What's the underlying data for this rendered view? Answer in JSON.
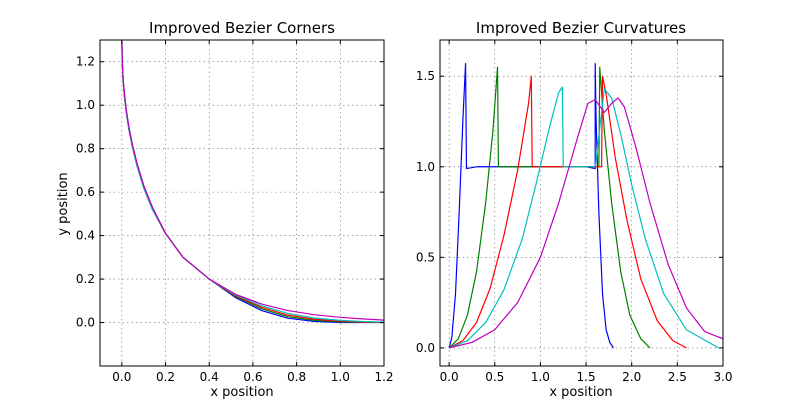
{
  "chart_data": [
    {
      "type": "line",
      "title": "Improved Bezier Corners",
      "xlabel": "x position",
      "ylabel": "y position",
      "xlim": [
        -0.1,
        1.2
      ],
      "ylim": [
        -0.2,
        1.3
      ],
      "xticks": [
        "0.0",
        "0.2",
        "0.4",
        "0.6",
        "0.8",
        "1.0",
        "1.2"
      ],
      "yticks": [
        "0.0",
        "0.2",
        "0.4",
        "0.6",
        "0.8",
        "1.0",
        "1.2"
      ],
      "grid": true,
      "series": [
        {
          "color": "#0000ff",
          "x": [
            0.0,
            0.002,
            0.006,
            0.012,
            0.02,
            0.032,
            0.048,
            0.07,
            0.1,
            0.14,
            0.2,
            0.28,
            0.4,
            0.52,
            0.64,
            0.76,
            0.88,
            1.0,
            1.1,
            1.2
          ],
          "y": [
            1.3,
            1.2,
            1.12,
            1.05,
            0.98,
            0.9,
            0.82,
            0.73,
            0.63,
            0.53,
            0.41,
            0.3,
            0.2,
            0.115,
            0.055,
            0.02,
            0.005,
            0.0,
            0.0,
            0.0
          ]
        },
        {
          "color": "#008000",
          "x": [
            0.0,
            0.002,
            0.006,
            0.012,
            0.02,
            0.032,
            0.048,
            0.07,
            0.1,
            0.14,
            0.2,
            0.28,
            0.4,
            0.52,
            0.64,
            0.76,
            0.88,
            1.0,
            1.1,
            1.2
          ],
          "y": [
            1.3,
            1.19,
            1.11,
            1.04,
            0.97,
            0.89,
            0.81,
            0.72,
            0.62,
            0.52,
            0.41,
            0.3,
            0.2,
            0.12,
            0.063,
            0.027,
            0.01,
            0.003,
            0.001,
            0.0
          ]
        },
        {
          "color": "#ff0000",
          "x": [
            0.0,
            0.002,
            0.006,
            0.012,
            0.02,
            0.032,
            0.048,
            0.07,
            0.1,
            0.14,
            0.2,
            0.28,
            0.4,
            0.52,
            0.64,
            0.76,
            0.88,
            1.0,
            1.1,
            1.2
          ],
          "y": [
            1.3,
            1.19,
            1.11,
            1.04,
            0.97,
            0.89,
            0.81,
            0.72,
            0.62,
            0.52,
            0.41,
            0.3,
            0.2,
            0.123,
            0.07,
            0.034,
            0.015,
            0.006,
            0.003,
            0.001
          ]
        },
        {
          "color": "#00bfbf",
          "x": [
            0.0,
            0.002,
            0.006,
            0.012,
            0.02,
            0.032,
            0.048,
            0.07,
            0.1,
            0.14,
            0.2,
            0.28,
            0.4,
            0.52,
            0.64,
            0.76,
            0.88,
            1.0,
            1.1,
            1.2
          ],
          "y": [
            1.3,
            1.19,
            1.11,
            1.04,
            0.97,
            0.89,
            0.81,
            0.72,
            0.62,
            0.52,
            0.41,
            0.3,
            0.2,
            0.127,
            0.077,
            0.042,
            0.021,
            0.01,
            0.005,
            0.002
          ]
        },
        {
          "color": "#bf00bf",
          "x": [
            0.0,
            0.002,
            0.006,
            0.012,
            0.02,
            0.032,
            0.048,
            0.07,
            0.1,
            0.14,
            0.2,
            0.28,
            0.4,
            0.52,
            0.64,
            0.76,
            0.88,
            1.0,
            1.1,
            1.2
          ],
          "y": [
            1.3,
            1.2,
            1.12,
            1.05,
            0.98,
            0.9,
            0.82,
            0.73,
            0.63,
            0.53,
            0.41,
            0.3,
            0.2,
            0.13,
            0.085,
            0.055,
            0.036,
            0.024,
            0.017,
            0.011
          ]
        }
      ]
    },
    {
      "type": "line",
      "title": "Improved Bezier Curvatures",
      "xlabel": "x position",
      "ylabel": "",
      "xlim": [
        -0.1,
        3.0
      ],
      "ylim": [
        -0.1,
        1.7
      ],
      "xticks": [
        "0.0",
        "0.5",
        "1.0",
        "1.5",
        "2.0",
        "2.5",
        "3.0"
      ],
      "yticks": [
        "0.0",
        "0.5",
        "1.0",
        "1.5"
      ],
      "grid": true,
      "series": [
        {
          "color": "#0000ff",
          "x": [
            0.0,
            0.03,
            0.07,
            0.11,
            0.15,
            0.18,
            0.19,
            0.3,
            0.6,
            0.9,
            1.2,
            1.5,
            1.6,
            1.6,
            1.61,
            1.64,
            1.68,
            1.72,
            1.76,
            1.8
          ],
          "y": [
            0.0,
            0.06,
            0.3,
            0.75,
            1.25,
            1.57,
            0.99,
            1.0,
            1.0,
            1.0,
            1.0,
            1.0,
            0.99,
            1.57,
            1.25,
            0.75,
            0.3,
            0.1,
            0.03,
            0.0
          ]
        },
        {
          "color": "#008000",
          "x": [
            0.0,
            0.1,
            0.2,
            0.3,
            0.4,
            0.48,
            0.53,
            0.54,
            0.7,
            1.0,
            1.3,
            1.6,
            1.64,
            1.65,
            1.7,
            1.78,
            1.88,
            1.98,
            2.1,
            2.2
          ],
          "y": [
            0.0,
            0.05,
            0.18,
            0.42,
            0.8,
            1.2,
            1.55,
            1.0,
            1.0,
            1.0,
            1.0,
            1.0,
            1.0,
            1.55,
            1.2,
            0.8,
            0.42,
            0.18,
            0.05,
            0.0
          ]
        },
        {
          "color": "#ff0000",
          "x": [
            0.0,
            0.15,
            0.3,
            0.45,
            0.6,
            0.75,
            0.87,
            0.9,
            0.91,
            1.2,
            1.5,
            1.67,
            1.68,
            1.72,
            1.82,
            1.95,
            2.1,
            2.28,
            2.45,
            2.6
          ],
          "y": [
            0.0,
            0.04,
            0.14,
            0.33,
            0.62,
            0.98,
            1.35,
            1.5,
            1.0,
            1.0,
            1.0,
            1.0,
            1.5,
            1.4,
            1.05,
            0.7,
            0.38,
            0.15,
            0.04,
            0.0
          ]
        },
        {
          "color": "#00bfbf",
          "x": [
            0.0,
            0.2,
            0.4,
            0.6,
            0.8,
            0.95,
            1.1,
            1.2,
            1.24,
            1.25,
            1.4,
            1.6,
            1.7,
            1.78,
            1.88,
            2.0,
            2.15,
            2.35,
            2.6,
            2.95
          ],
          "y": [
            0.0,
            0.04,
            0.14,
            0.32,
            0.6,
            0.9,
            1.22,
            1.41,
            1.44,
            1.0,
            1.0,
            1.0,
            1.43,
            1.38,
            1.18,
            0.9,
            0.6,
            0.3,
            0.1,
            0.0
          ]
        },
        {
          "color": "#bf00bf",
          "x": [
            0.0,
            0.25,
            0.5,
            0.75,
            1.0,
            1.2,
            1.4,
            1.52,
            1.6,
            1.7,
            1.78,
            1.85,
            1.92,
            2.05,
            2.2,
            2.4,
            2.6,
            2.8,
            3.0
          ],
          "y": [
            0.0,
            0.03,
            0.1,
            0.25,
            0.5,
            0.8,
            1.15,
            1.35,
            1.37,
            1.3,
            1.35,
            1.38,
            1.33,
            1.1,
            0.8,
            0.46,
            0.22,
            0.09,
            0.05
          ]
        }
      ]
    }
  ]
}
